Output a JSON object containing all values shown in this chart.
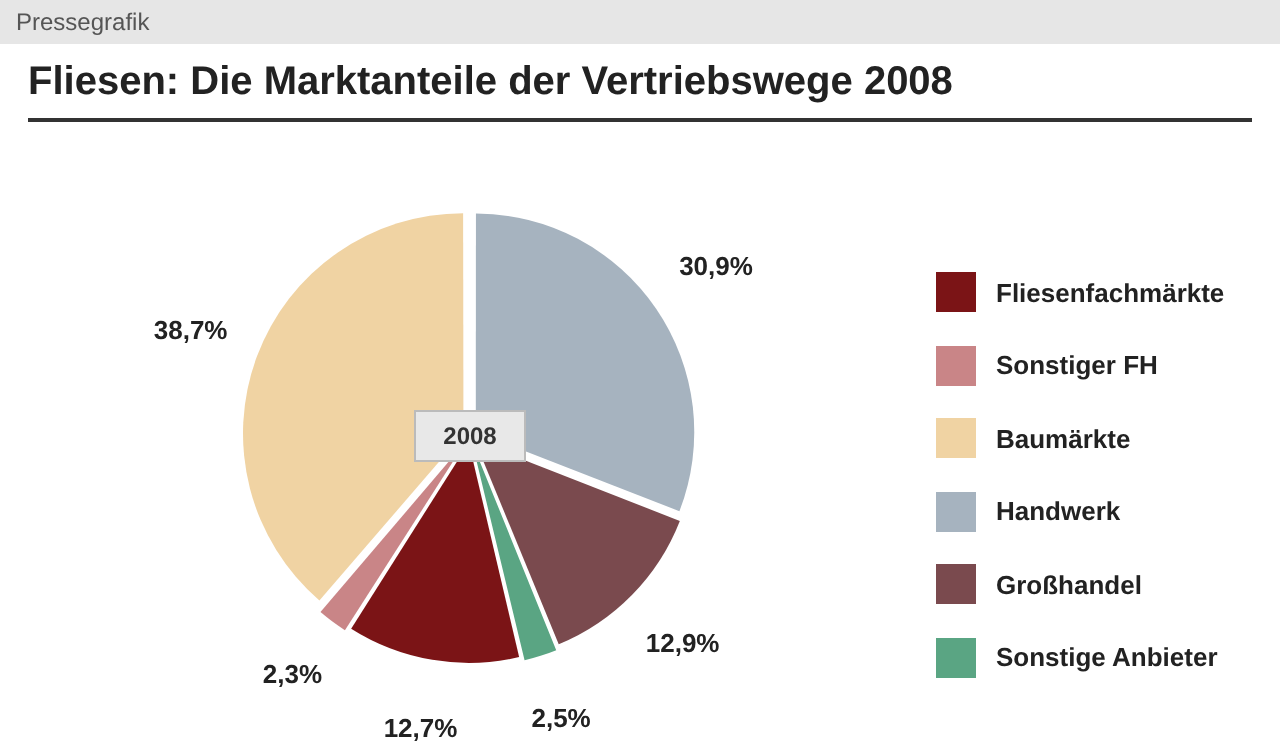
{
  "chart_data": {
    "type": "pie",
    "title": "Fliesen: Die Marktanteile der Vertriebswege 2008",
    "categories": [
      "Fliesenfachmärkte",
      "Sonstiger FH",
      "Baumärkte",
      "Handwerk",
      "Großhandel",
      "Sonstige Anbieter"
    ],
    "values": [
      12.7,
      2.3,
      38.7,
      30.9,
      12.9,
      2.5
    ],
    "colors": [
      "#7b1416",
      "#c98587",
      "#f0d3a3",
      "#a6b3bf",
      "#7a4a4e",
      "#5aa583"
    ],
    "value_labels": [
      "12,7%",
      "2,3%",
      "38,7%",
      "30,9%",
      "12,9%",
      "2,5%"
    ],
    "legend": "right",
    "annotations": [
      "Pressegrafik",
      "2008"
    ]
  }
}
